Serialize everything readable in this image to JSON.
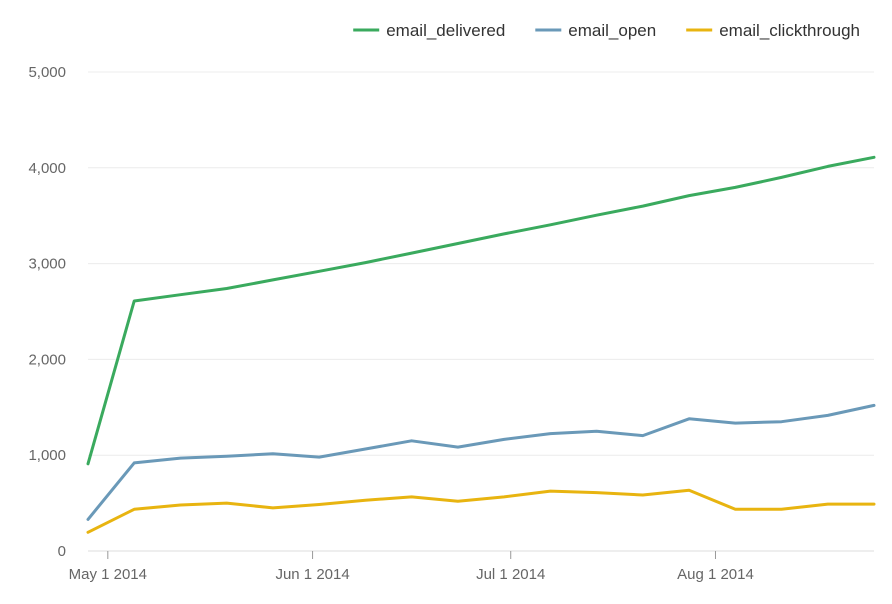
{
  "chart_data": {
    "type": "line",
    "title": "",
    "xlabel": "",
    "ylabel": "",
    "ylim": [
      0,
      5000
    ],
    "yticks": [
      0,
      1000,
      2000,
      3000,
      4000,
      5000
    ],
    "ytick_labels": [
      "0",
      "1,000",
      "2,000",
      "3,000",
      "4,000",
      "5,000"
    ],
    "xticks": [
      {
        "label": "May 1 2014",
        "day": 0
      },
      {
        "label": "Jun 1 2014",
        "day": 31
      },
      {
        "label": "Jul 1 2014",
        "day": 61
      },
      {
        "label": "Aug 1 2014",
        "day": 92
      }
    ],
    "x_days": [
      -3,
      4,
      11,
      18,
      25,
      32,
      39,
      46,
      53,
      60,
      67,
      74,
      81,
      88,
      95,
      102,
      109,
      116
    ],
    "x_range_days": [
      -3,
      116
    ],
    "legend_position": "top-right",
    "grid": true,
    "series": [
      {
        "name": "email_delivered",
        "color": "#3aaa5e",
        "values": [
          910,
          2610,
          2675,
          2740,
          2830,
          2920,
          3010,
          3110,
          3210,
          3310,
          3405,
          3505,
          3600,
          3710,
          3795,
          3900,
          4015,
          4110
        ]
      },
      {
        "name": "email_open",
        "color": "#6a99b8",
        "values": [
          330,
          920,
          970,
          990,
          1015,
          980,
          1065,
          1150,
          1085,
          1165,
          1225,
          1250,
          1205,
          1380,
          1335,
          1350,
          1415,
          1520
        ]
      },
      {
        "name": "email_clickthrough",
        "color": "#e8b410",
        "values": [
          195,
          435,
          480,
          500,
          450,
          485,
          530,
          565,
          520,
          565,
          625,
          610,
          585,
          635,
          435,
          435,
          490,
          490
        ]
      }
    ]
  }
}
